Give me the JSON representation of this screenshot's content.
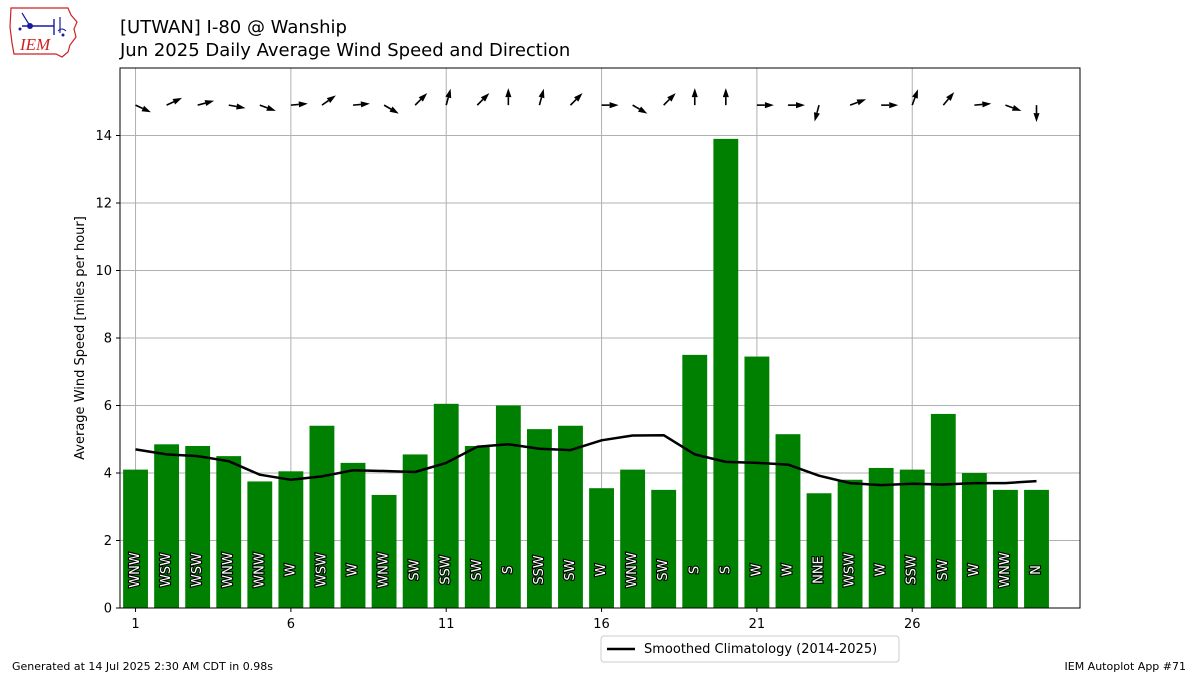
{
  "header": {
    "title_line1": "[UTWAN] I-80 @ Wanship",
    "title_line2": "Jun 2025 Daily Average Wind Speed and Direction"
  },
  "logo": {
    "text": "IEM"
  },
  "footer": {
    "generated": "Generated at 14 Jul 2025 2:30 AM CDT in 0.98s",
    "app": "IEM Autoplot App #71"
  },
  "colors": {
    "bar": "#008000",
    "climo": "#000000",
    "grid": "#b0b0b0",
    "logo_red": "#cc2222",
    "logo_blue": "#1a1aa0"
  },
  "chart_data": {
    "type": "bar",
    "x": [
      1,
      2,
      3,
      4,
      5,
      6,
      7,
      8,
      9,
      10,
      11,
      12,
      13,
      14,
      15,
      16,
      17,
      18,
      19,
      20,
      21,
      22,
      23,
      24,
      25,
      26,
      27,
      28,
      29,
      30
    ],
    "values": [
      4.1,
      4.85,
      4.8,
      4.5,
      3.75,
      4.05,
      5.4,
      4.3,
      3.35,
      4.55,
      6.05,
      4.8,
      6.0,
      5.3,
      5.4,
      3.55,
      4.1,
      3.5,
      7.5,
      13.9,
      7.45,
      5.15,
      3.4,
      3.8,
      4.15,
      4.1,
      5.75,
      4.0,
      3.5,
      3.5
    ],
    "direction_labels": [
      "WNW",
      "WSW",
      "WSW",
      "WNW",
      "WNW",
      "W",
      "WSW",
      "W",
      "WNW",
      "SW",
      "SSW",
      "SW",
      "S",
      "SSW",
      "SW",
      "W",
      "WNW",
      "SW",
      "S",
      "S",
      "W",
      "W",
      "NNE",
      "WSW",
      "W",
      "SSW",
      "SW",
      "W",
      "WNW",
      "N"
    ],
    "direction_angles_deg": [
      295,
      245,
      255,
      280,
      290,
      265,
      235,
      265,
      300,
      225,
      195,
      225,
      180,
      195,
      225,
      270,
      300,
      225,
      180,
      180,
      270,
      270,
      15,
      250,
      270,
      200,
      220,
      265,
      290,
      0
    ],
    "climatology": {
      "name": "Smoothed Climatology (2014-2025)",
      "values": [
        4.7,
        4.55,
        4.5,
        4.35,
        3.95,
        3.8,
        3.9,
        4.08,
        4.06,
        4.03,
        4.3,
        4.78,
        4.85,
        4.72,
        4.68,
        4.97,
        5.11,
        5.12,
        4.55,
        4.33,
        4.3,
        4.25,
        3.92,
        3.7,
        3.64,
        3.68,
        3.66,
        3.7,
        3.7,
        3.76
      ]
    },
    "xticks": [
      1,
      6,
      11,
      16,
      21,
      26
    ],
    "yticks": [
      0,
      2,
      4,
      6,
      8,
      10,
      12,
      14
    ],
    "xlim": [
      0.5,
      31.4
    ],
    "ylim": [
      0,
      16
    ],
    "ylabel": "Average Wind Speed [miles per hour]",
    "xlabel": "",
    "grid": true,
    "legend_position": "bottom-center"
  }
}
